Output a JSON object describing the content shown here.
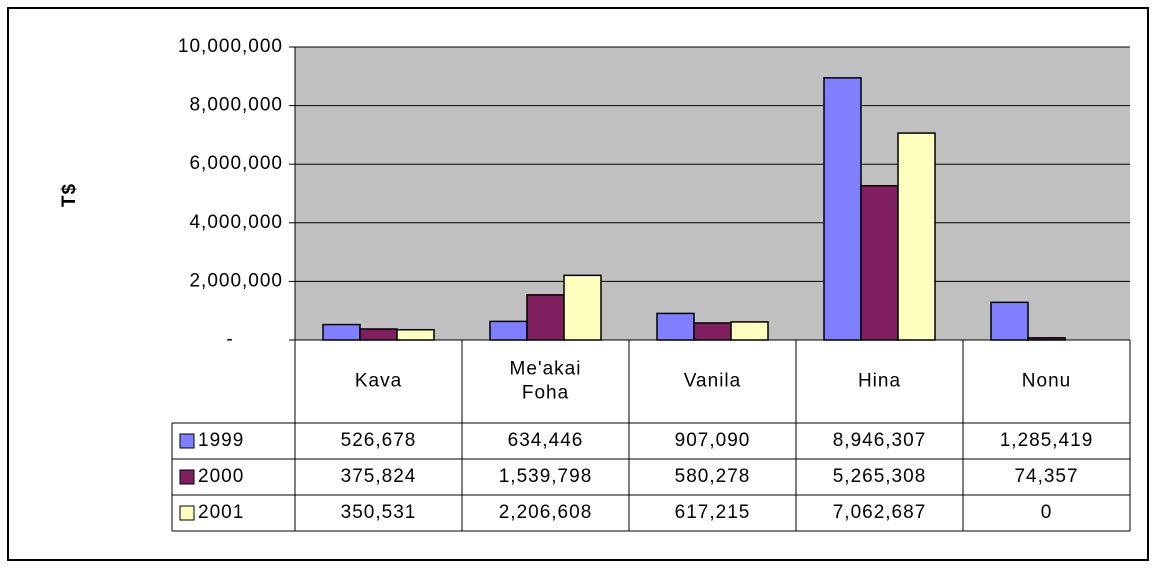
{
  "chart_data": {
    "type": "bar",
    "y_label": "T$",
    "categories": [
      "Kava",
      "Me'akai Foha",
      "Vanila",
      "Hina",
      "Nonu"
    ],
    "series": [
      {
        "name": "1999",
        "color": "#8080ff",
        "values": [
          526678,
          634446,
          907090,
          8946307,
          1285419
        ],
        "value_labels": [
          "526,678",
          "634,446",
          "907,090",
          "8,946,307",
          "1,285,419"
        ]
      },
      {
        "name": "2000",
        "color": "#802060",
        "values": [
          375824,
          1539798,
          580278,
          5265308,
          74357
        ],
        "value_labels": [
          "375,824",
          "1,539,798",
          "580,278",
          "5,265,308",
          "74,357"
        ]
      },
      {
        "name": "2001",
        "color": "#ffffc0",
        "values": [
          350531,
          2206608,
          617215,
          7062687,
          0
        ],
        "value_labels": [
          "350,531",
          "2,206,608",
          "617,215",
          "7,062,687",
          "0"
        ]
      }
    ],
    "ylim": [
      0,
      10000000
    ],
    "yticks": [
      {
        "value": 0,
        "label": "-"
      },
      {
        "value": 2000000,
        "label": "2,000,000"
      },
      {
        "value": 4000000,
        "label": "4,000,000"
      },
      {
        "value": 6000000,
        "label": "6,000,000"
      },
      {
        "value": 8000000,
        "label": "8,000,000"
      },
      {
        "value": 10000000,
        "label": "10,000,000"
      }
    ],
    "grid": true,
    "plot_background": "#c0c0c0"
  }
}
